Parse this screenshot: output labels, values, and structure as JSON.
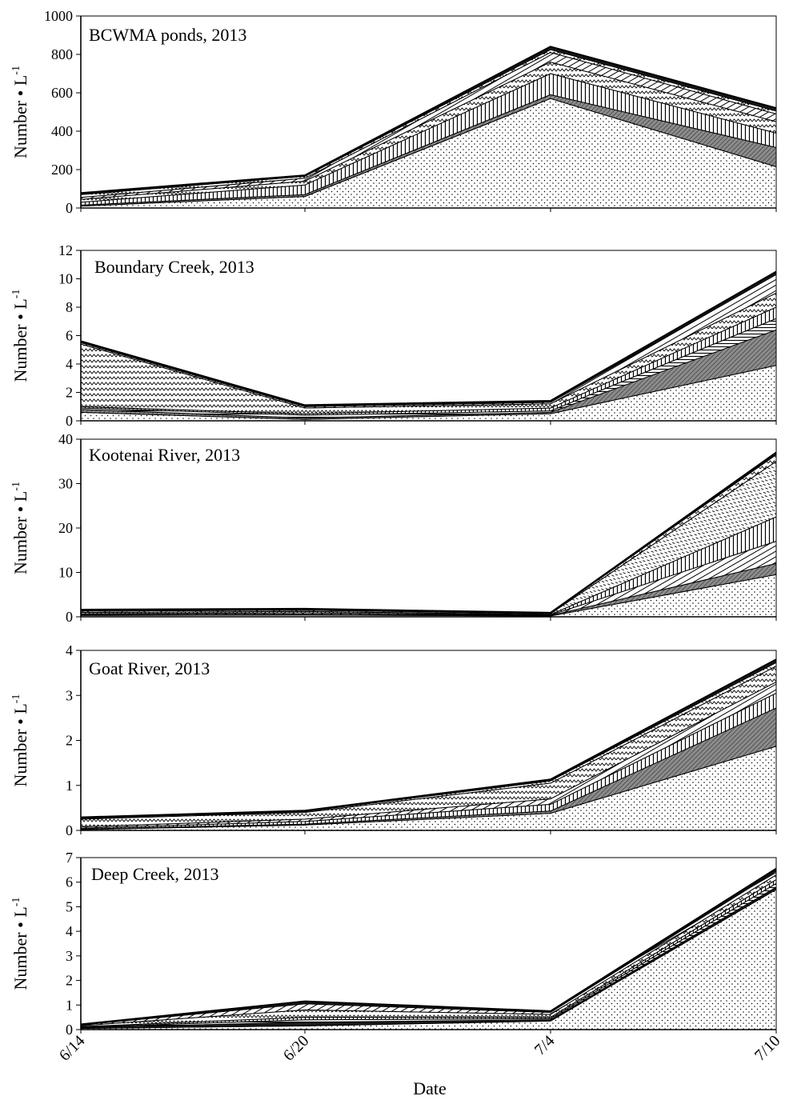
{
  "x_axis": {
    "label": "Date",
    "ticks": [
      "6/14",
      "6/20",
      "7/4",
      "7/10"
    ]
  },
  "y_axis_label": {
    "main": "Number • L",
    "superscript": "-1"
  },
  "chart_data": [
    {
      "type": "area",
      "title": "BCWMA ponds, 2013",
      "x": [
        "6/14",
        "6/20",
        "7/4",
        "7/10"
      ],
      "ylim": [
        0,
        1000
      ],
      "yticks": [
        0,
        200,
        400,
        600,
        800,
        1000
      ],
      "series": [
        {
          "fill": "dots",
          "values": [
            10,
            60,
            570,
            215
          ]
        },
        {
          "fill": "dark",
          "values": [
            5,
            10,
            20,
            100
          ]
        },
        {
          "fill": "vstripes",
          "values": [
            15,
            50,
            110,
            75
          ]
        },
        {
          "fill": "zigzag",
          "values": [
            15,
            20,
            60,
            60
          ]
        },
        {
          "fill": "diagonal",
          "values": [
            10,
            15,
            50,
            40
          ]
        },
        {
          "fill": "zigzag",
          "values": [
            15,
            10,
            15,
            15
          ]
        },
        {
          "fill": "solid",
          "values": [
            8,
            5,
            15,
            15
          ]
        }
      ]
    },
    {
      "type": "area",
      "title": "Boundary Creek, 2013",
      "x": [
        "6/14",
        "6/20",
        "7/4",
        "7/10"
      ],
      "ylim": [
        0,
        12
      ],
      "yticks": [
        0,
        2,
        4,
        6,
        8,
        10,
        12
      ],
      "series": [
        {
          "fill": "dots",
          "values": [
            0.6,
            0.1,
            0.5,
            3.9
          ]
        },
        {
          "fill": "dark",
          "values": [
            0.2,
            0.1,
            0.1,
            2.5
          ]
        },
        {
          "fill": "hstripes",
          "values": [
            0.1,
            0.2,
            0.1,
            0.8
          ]
        },
        {
          "fill": "vstripes",
          "values": [
            0.1,
            0.1,
            0.2,
            0.8
          ]
        },
        {
          "fill": "zigzag",
          "values": [
            4.4,
            0.4,
            0.3,
            1.0
          ]
        },
        {
          "fill": "diagonal",
          "values": [
            0.1,
            0.1,
            0.1,
            1.3
          ]
        },
        {
          "fill": "solid",
          "values": [
            0.1,
            0.1,
            0.1,
            0.2
          ]
        }
      ]
    },
    {
      "type": "area",
      "title": "Kootenai River, 2013",
      "x": [
        "6/14",
        "6/20",
        "7/4",
        "7/10"
      ],
      "ylim": [
        0,
        40
      ],
      "yticks": [
        0,
        10,
        20,
        30,
        40
      ],
      "series": [
        {
          "fill": "dots",
          "values": [
            0.3,
            0.4,
            0.2,
            9.5
          ]
        },
        {
          "fill": "dark",
          "values": [
            0.2,
            0.2,
            0.1,
            2.5
          ]
        },
        {
          "fill": "diagonal",
          "values": [
            0.2,
            0.3,
            0.1,
            5.0
          ]
        },
        {
          "fill": "vstripes",
          "values": [
            0.3,
            0.3,
            0.1,
            5.5
          ]
        },
        {
          "fill": "hatch",
          "values": [
            0.3,
            0.3,
            0.2,
            12.5
          ]
        },
        {
          "fill": "zigzag",
          "values": [
            0.2,
            0.2,
            0.1,
            1.5
          ]
        },
        {
          "fill": "solid",
          "values": [
            0.1,
            0.1,
            0.1,
            0.5
          ]
        }
      ]
    },
    {
      "type": "area",
      "title": "Goat River, 2013",
      "x": [
        "6/14",
        "6/20",
        "7/4",
        "7/10"
      ],
      "ylim": [
        0,
        4
      ],
      "yticks": [
        0,
        1,
        2,
        3,
        4
      ],
      "series": [
        {
          "fill": "dots",
          "values": [
            0.02,
            0.12,
            0.38,
            1.87
          ]
        },
        {
          "fill": "dark",
          "values": [
            0.01,
            0.02,
            0.05,
            0.85
          ]
        },
        {
          "fill": "vstripes",
          "values": [
            0.02,
            0.06,
            0.15,
            0.33
          ]
        },
        {
          "fill": "diagonal",
          "values": [
            0.03,
            0.05,
            0.12,
            0.25
          ]
        },
        {
          "fill": "zigzag",
          "values": [
            0.17,
            0.15,
            0.35,
            0.35
          ]
        },
        {
          "fill": "hatch",
          "values": [
            0.02,
            0.02,
            0.05,
            0.08
          ]
        },
        {
          "fill": "solid",
          "values": [
            0.02,
            0.02,
            0.03,
            0.07
          ]
        }
      ]
    },
    {
      "type": "area",
      "title": "Deep Creek, 2013",
      "x": [
        "6/14",
        "6/20",
        "7/4",
        "7/10"
      ],
      "ylim": [
        0,
        7
      ],
      "yticks": [
        0,
        1,
        2,
        3,
        4,
        5,
        6,
        7
      ],
      "series": [
        {
          "fill": "dots",
          "values": [
            0.05,
            0.15,
            0.35,
            5.7
          ]
        },
        {
          "fill": "solid",
          "values": [
            0.03,
            0.15,
            0.05,
            0.1
          ]
        },
        {
          "fill": "hstripes",
          "values": [
            0.02,
            0.1,
            0.05,
            0.15
          ]
        },
        {
          "fill": "vstripes",
          "values": [
            0.02,
            0.1,
            0.05,
            0.15
          ]
        },
        {
          "fill": "zigzag",
          "values": [
            0.04,
            0.3,
            0.12,
            0.2
          ]
        },
        {
          "fill": "diagonal",
          "values": [
            0.03,
            0.25,
            0.08,
            0.15
          ]
        },
        {
          "fill": "solid",
          "values": [
            0.02,
            0.1,
            0.05,
            0.1
          ]
        }
      ]
    }
  ]
}
